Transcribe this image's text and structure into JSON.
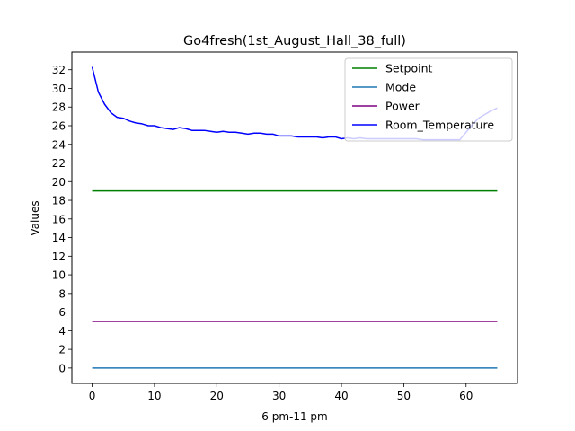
{
  "chart_data": {
    "type": "line",
    "title": "Go4fresh(1st_August_Hall_38_full)",
    "xlabel": "6 pm-11 pm",
    "ylabel": "Values",
    "xlim": [
      -3.25,
      68.25
    ],
    "ylim": [
      -1.65,
      33.9
    ],
    "xticks": [
      0,
      10,
      20,
      30,
      40,
      50,
      60
    ],
    "yticks": [
      0,
      2,
      4,
      6,
      8,
      10,
      12,
      14,
      16,
      18,
      20,
      22,
      24,
      26,
      28,
      30,
      32
    ],
    "legend_position": "upper right",
    "grid": false,
    "series": [
      {
        "name": "Setpoint",
        "color": "#008000",
        "x": [
          0,
          65
        ],
        "y": [
          19,
          19
        ]
      },
      {
        "name": "Mode",
        "color": "#1f77b4",
        "x": [
          0,
          65
        ],
        "y": [
          0,
          0
        ]
      },
      {
        "name": "Power",
        "color": "#800080",
        "x": [
          0,
          65
        ],
        "y": [
          5,
          5
        ]
      },
      {
        "name": "Room_Temperature",
        "color": "#0000ff",
        "x": [
          0,
          1,
          2,
          3,
          4,
          5,
          6,
          7,
          8,
          9,
          10,
          11,
          12,
          13,
          14,
          15,
          16,
          17,
          18,
          19,
          20,
          21,
          22,
          23,
          24,
          25,
          26,
          27,
          28,
          29,
          30,
          31,
          32,
          33,
          34,
          35,
          36,
          37,
          38,
          39,
          40,
          41,
          42,
          43,
          44,
          45,
          46,
          47,
          48,
          49,
          50,
          51,
          52,
          53,
          54,
          55,
          56,
          57,
          58,
          59,
          60,
          61,
          62,
          63,
          64,
          65
        ],
        "y": [
          32.3,
          29.6,
          28.3,
          27.4,
          26.9,
          26.8,
          26.5,
          26.3,
          26.2,
          26.0,
          26.0,
          25.8,
          25.7,
          25.6,
          25.8,
          25.7,
          25.5,
          25.5,
          25.5,
          25.4,
          25.3,
          25.4,
          25.3,
          25.3,
          25.2,
          25.1,
          25.2,
          25.2,
          25.1,
          25.1,
          24.9,
          24.9,
          24.9,
          24.8,
          24.8,
          24.8,
          24.8,
          24.7,
          24.8,
          24.8,
          24.6,
          24.7,
          24.6,
          24.7,
          24.6,
          24.6,
          24.6,
          24.6,
          24.6,
          24.6,
          24.6,
          24.6,
          24.6,
          24.5,
          24.5,
          24.5,
          24.5,
          24.5,
          24.5,
          24.5,
          25.3,
          26.1,
          26.8,
          27.2,
          27.6,
          27.9
        ]
      }
    ]
  }
}
